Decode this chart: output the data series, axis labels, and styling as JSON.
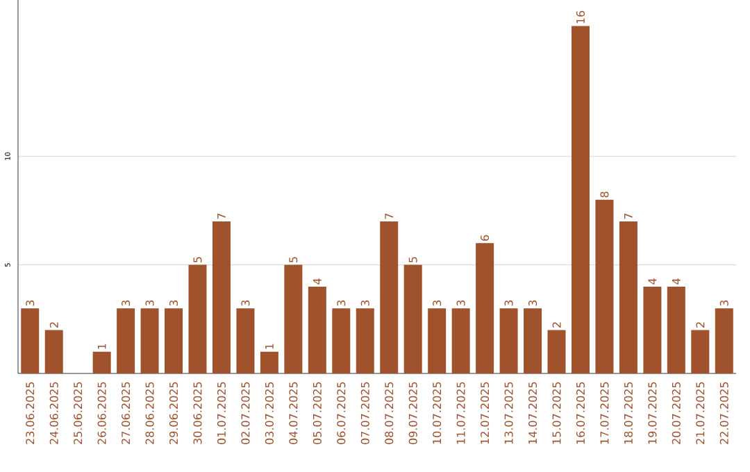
{
  "chart_data": {
    "type": "bar",
    "categories": [
      "23.06.2025",
      "24.06.2025",
      "25.06.2025",
      "26.06.2025",
      "27.06.2025",
      "28.06.2025",
      "29.06.2025",
      "30.06.2025",
      "01.07.2025",
      "02.07.2025",
      "03.07.2025",
      "04.07.2025",
      "05.07.2025",
      "06.07.2025",
      "07.07.2025",
      "08.07.2025",
      "09.07.2025",
      "10.07.2025",
      "11.07.2025",
      "12.07.2025",
      "13.07.2025",
      "14.07.2025",
      "15.07.2025",
      "16.07.2025",
      "17.07.2025",
      "18.07.2025",
      "19.07.2025",
      "20.07.2025",
      "21.07.2025",
      "22.07.2025"
    ],
    "values": [
      3,
      2,
      0,
      1,
      3,
      3,
      3,
      5,
      7,
      3,
      1,
      5,
      4,
      3,
      3,
      7,
      5,
      3,
      3,
      6,
      3,
      3,
      2,
      16,
      8,
      7,
      4,
      4,
      2,
      3
    ],
    "value_labels": [
      "3",
      "2",
      null,
      "1",
      "3",
      "3",
      "3",
      "5",
      "7",
      "3",
      "1",
      "5",
      "4",
      "3",
      "3",
      "7",
      "5",
      "3",
      "3",
      "6",
      "3",
      "3",
      "2",
      "16",
      "8",
      "7",
      "4",
      "4",
      "2",
      "3"
    ],
    "color": "#a0522d",
    "ylim": [
      0,
      17.2
    ],
    "yticks": [
      5,
      10
    ],
    "grid": "y"
  }
}
